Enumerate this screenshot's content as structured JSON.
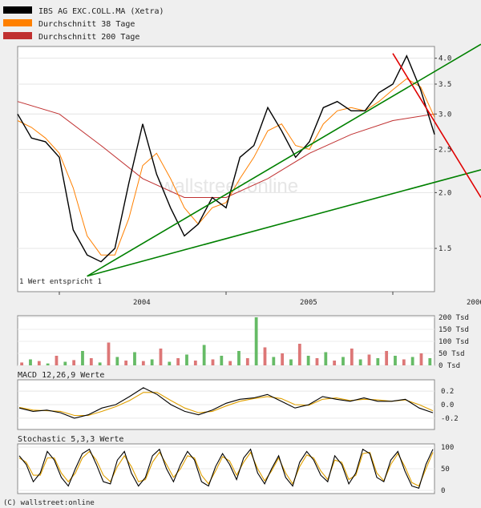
{
  "legend": [
    {
      "label": "IBS AG EXC.COLL.MA (Xetra)",
      "color": "#000000"
    },
    {
      "label": "Durchschnitt 38 Tage",
      "color": "#ff8000"
    },
    {
      "label": "Durchschnitt 200 Tage",
      "color": "#c03030"
    }
  ],
  "note": "1 Wert entspricht 1",
  "watermark": "wallstreet:online",
  "footer": "(C) wallstreet:online",
  "chart_data": [
    {
      "type": "line",
      "panel": "price",
      "scale": "log",
      "ylim": [
        1.2,
        4.25
      ],
      "yticks": [
        "4.0",
        "3.5",
        "3.0",
        "2.5",
        "2.0",
        "1.5"
      ],
      "ytick_values": [
        4.0,
        3.5,
        3.0,
        2.5,
        2.0,
        1.5
      ],
      "xlabels": [
        "2004",
        "2005",
        "2006"
      ],
      "x_range": [
        "2003-10",
        "2006-04"
      ],
      "series": [
        {
          "name": "IBS AG EXC.COLL.MA (Xetra)",
          "color": "#000000",
          "x": [
            "2003-10",
            "2003-11",
            "2003-12",
            "2004-01",
            "2004-02",
            "2004-03",
            "2004-04",
            "2004-05",
            "2004-06",
            "2004-07",
            "2004-08",
            "2004-09",
            "2004-10",
            "2004-11",
            "2004-12",
            "2005-01",
            "2005-02",
            "2005-03",
            "2005-04",
            "2005-05",
            "2005-06",
            "2005-07",
            "2005-08",
            "2005-09",
            "2005-10",
            "2005-11",
            "2005-12",
            "2006-01",
            "2006-02",
            "2006-03",
            "2006-04"
          ],
          "values": [
            3.0,
            2.65,
            2.6,
            2.4,
            1.65,
            1.45,
            1.4,
            1.5,
            2.1,
            2.85,
            2.2,
            1.85,
            1.6,
            1.7,
            1.95,
            1.85,
            2.4,
            2.55,
            3.1,
            2.75,
            2.4,
            2.6,
            3.1,
            3.2,
            3.05,
            3.05,
            3.35,
            3.5,
            4.05,
            3.4,
            2.7
          ]
        },
        {
          "name": "Durchschnitt 38 Tage",
          "color": "#ff8000",
          "x": [
            "2003-10",
            "2003-11",
            "2003-12",
            "2004-01",
            "2004-02",
            "2004-03",
            "2004-04",
            "2004-05",
            "2004-06",
            "2004-07",
            "2004-08",
            "2004-09",
            "2004-10",
            "2004-11",
            "2004-12",
            "2005-01",
            "2005-02",
            "2005-03",
            "2005-04",
            "2005-05",
            "2005-06",
            "2005-07",
            "2005-08",
            "2005-09",
            "2005-10",
            "2005-11",
            "2005-12",
            "2006-01",
            "2006-02",
            "2006-03",
            "2006-04"
          ],
          "values": [
            2.9,
            2.8,
            2.65,
            2.45,
            2.05,
            1.6,
            1.45,
            1.45,
            1.75,
            2.3,
            2.45,
            2.15,
            1.85,
            1.7,
            1.85,
            1.9,
            2.15,
            2.4,
            2.75,
            2.85,
            2.55,
            2.5,
            2.85,
            3.05,
            3.1,
            3.05,
            3.2,
            3.4,
            3.6,
            3.45,
            2.95
          ]
        },
        {
          "name": "Durchschnitt 200 Tage",
          "color": "#c03030",
          "x": [
            "2003-10",
            "2004-01",
            "2004-04",
            "2004-07",
            "2004-10",
            "2005-01",
            "2005-04",
            "2005-07",
            "2005-10",
            "2006-01",
            "2006-04"
          ],
          "values": [
            3.2,
            3.0,
            2.55,
            2.15,
            1.95,
            1.95,
            2.15,
            2.45,
            2.7,
            2.9,
            3.0
          ]
        }
      ],
      "trendlines": [
        {
          "color": "#008000",
          "from": [
            "2004-03",
            1.3
          ],
          "to": [
            "2006-04",
            4.3
          ]
        },
        {
          "color": "#008000",
          "from": [
            "2004-03",
            1.3
          ],
          "to": [
            "2006-04",
            2.25
          ]
        },
        {
          "color": "#e00000",
          "from": [
            "2006-01",
            4.1
          ],
          "to": [
            "2006-04",
            1.95
          ]
        }
      ]
    },
    {
      "type": "bar",
      "panel": "volume",
      "yticks": [
        "200 Tsd",
        "150 Tsd",
        "100 Tsd",
        "50 Tsd",
        "0 Tsd"
      ],
      "ytick_values": [
        200,
        150,
        100,
        50,
        0
      ],
      "unit": "Tsd",
      "ylim": [
        0,
        200
      ],
      "up_color": "#66bb66",
      "down_color": "#dd7777",
      "values": [
        12,
        25,
        18,
        8,
        40,
        15,
        22,
        60,
        30,
        12,
        95,
        35,
        20,
        55,
        18,
        25,
        70,
        15,
        30,
        45,
        20,
        85,
        25,
        40,
        18,
        60,
        30,
        200,
        75,
        35,
        50,
        25,
        90,
        40,
        30,
        55,
        20,
        35,
        70,
        25,
        45,
        30,
        60,
        40,
        25,
        35,
        50,
        30
      ]
    },
    {
      "type": "line",
      "panel": "macd",
      "title": "MACD 12,26,9 Werte",
      "yticks": [
        "0.2",
        "0.0",
        "-0.2"
      ],
      "ytick_values": [
        0.2,
        0.0,
        -0.2
      ],
      "ylim": [
        -0.32,
        0.32
      ],
      "series": [
        {
          "color": "#000000",
          "values": [
            -0.05,
            -0.1,
            -0.08,
            -0.12,
            -0.2,
            -0.15,
            -0.05,
            0.0,
            0.12,
            0.25,
            0.15,
            0.0,
            -0.1,
            -0.15,
            -0.08,
            0.02,
            0.08,
            0.1,
            0.15,
            0.05,
            -0.05,
            0.0,
            0.12,
            0.08,
            0.05,
            0.1,
            0.05,
            0.05,
            0.08,
            -0.05,
            -0.12
          ]
        },
        {
          "color": "#e0a000",
          "values": [
            -0.04,
            -0.08,
            -0.09,
            -0.1,
            -0.16,
            -0.16,
            -0.1,
            -0.03,
            0.06,
            0.18,
            0.18,
            0.06,
            -0.05,
            -0.12,
            -0.1,
            -0.02,
            0.05,
            0.09,
            0.12,
            0.09,
            0.0,
            -0.01,
            0.08,
            0.1,
            0.06,
            0.08,
            0.07,
            0.05,
            0.07,
            0.0,
            -0.09
          ]
        }
      ]
    },
    {
      "type": "line",
      "panel": "stochastic",
      "title": "Stochastic 5,3,3 Werte",
      "yticks": [
        "100",
        "50",
        "0"
      ],
      "ytick_values": [
        100,
        50,
        0
      ],
      "ylim": [
        0,
        100
      ],
      "series": [
        {
          "color": "#000000",
          "values": [
            80,
            60,
            20,
            40,
            90,
            70,
            30,
            10,
            50,
            85,
            95,
            60,
            20,
            15,
            70,
            90,
            40,
            10,
            30,
            80,
            95,
            50,
            20,
            60,
            90,
            70,
            20,
            10,
            55,
            85,
            60,
            25,
            75,
            95,
            40,
            15,
            50,
            80,
            30,
            10,
            65,
            90,
            70,
            35,
            20,
            80,
            60,
            15,
            40,
            95,
            85,
            30,
            20,
            70,
            90,
            45,
            10,
            5,
            60,
            95
          ]
        },
        {
          "color": "#e0a000",
          "values": [
            75,
            65,
            35,
            35,
            75,
            75,
            40,
            20,
            40,
            75,
            90,
            70,
            35,
            20,
            55,
            80,
            55,
            20,
            25,
            65,
            88,
            60,
            30,
            50,
            80,
            75,
            35,
            15,
            45,
            78,
            68,
            35,
            65,
            88,
            50,
            22,
            45,
            75,
            40,
            15,
            55,
            82,
            75,
            45,
            25,
            70,
            65,
            25,
            35,
            85,
            88,
            40,
            22,
            60,
            85,
            55,
            18,
            10,
            50,
            88
          ]
        }
      ]
    }
  ]
}
